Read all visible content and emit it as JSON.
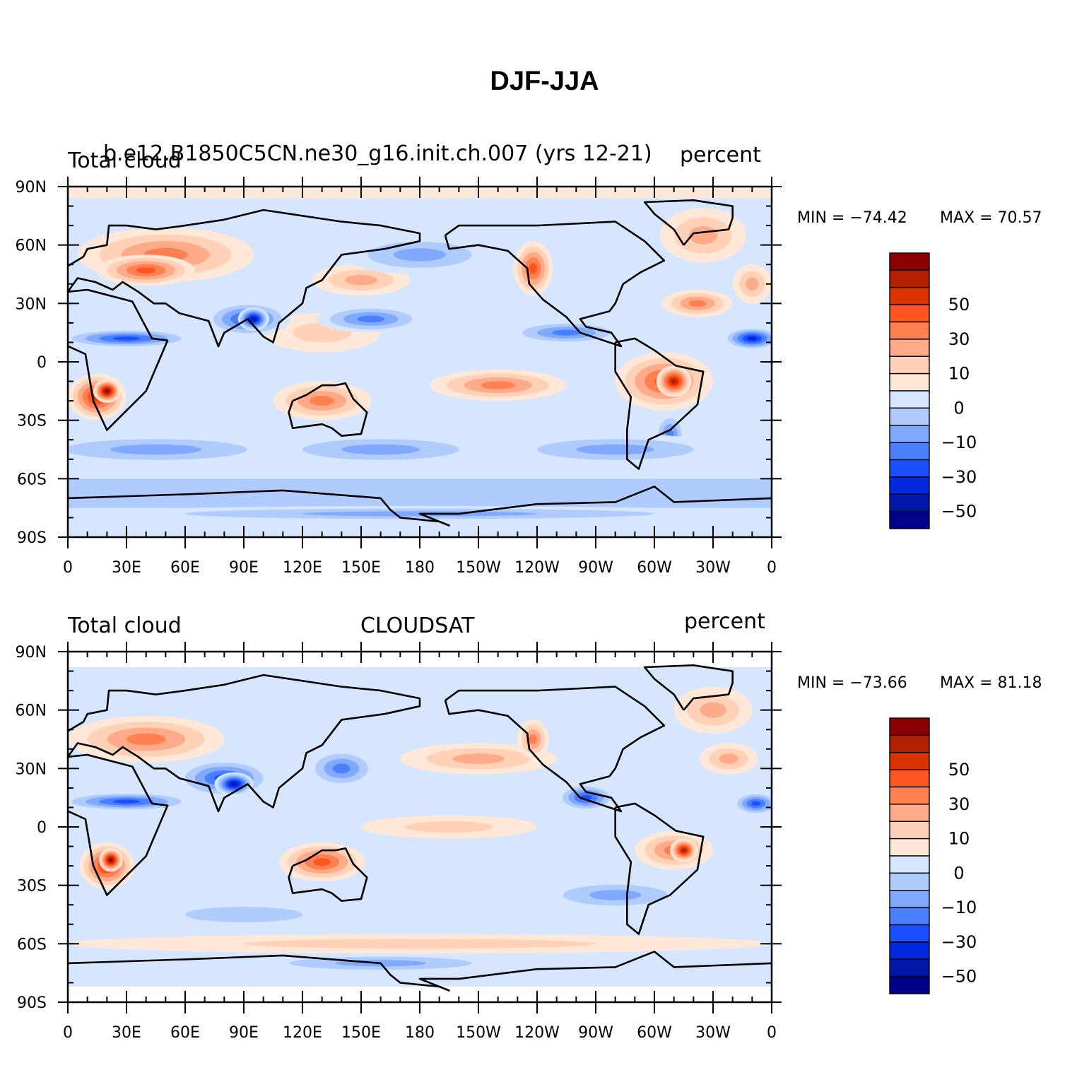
{
  "title": "DJF-JJA",
  "panels": [
    {
      "left_title": "Total cloud",
      "center_title": "b.e12.B1850C5CN.ne30_g16.init.ch.007 (yrs 12-21)",
      "right_title": "percent",
      "min_label": "MIN = −74.42",
      "max_label": "MAX =   70.57",
      "lat_labels": [
        "90N",
        "60N",
        "30N",
        "0",
        "30S",
        "60S",
        "90S"
      ],
      "lon_labels": [
        "0",
        "30E",
        "60E",
        "90E",
        "120E",
        "150E",
        "180",
        "150W",
        "120W",
        "90W",
        "60W",
        "30W",
        "0"
      ],
      "colorbar_labels": [
        "50",
        "30",
        "10",
        "0",
        "−10",
        "−30",
        "−50"
      ]
    },
    {
      "left_title": "Total cloud",
      "center_title": "CLOUDSAT",
      "right_title": "percent",
      "min_label": "MIN = −73.66",
      "max_label": "MAX =   81.18",
      "lat_labels": [
        "90N",
        "60N",
        "30N",
        "0",
        "30S",
        "60S",
        "90S"
      ],
      "lon_labels": [
        "0",
        "30E",
        "60E",
        "90E",
        "120E",
        "150E",
        "180",
        "150W",
        "120W",
        "90W",
        "60W",
        "30W",
        "0"
      ],
      "colorbar_labels": [
        "50",
        "30",
        "10",
        "0",
        "−10",
        "−30",
        "−50"
      ]
    }
  ],
  "colorbar_colors": [
    "#8b0000",
    "#b22000",
    "#d93300",
    "#ff5522",
    "#ff8050",
    "#ffaa88",
    "#ffd2b8",
    "#ffe8d8",
    "#d6e6ff",
    "#b0ccff",
    "#80aaff",
    "#4a80ff",
    "#1a50ff",
    "#0028dd",
    "#0018aa",
    "#00008b"
  ]
}
